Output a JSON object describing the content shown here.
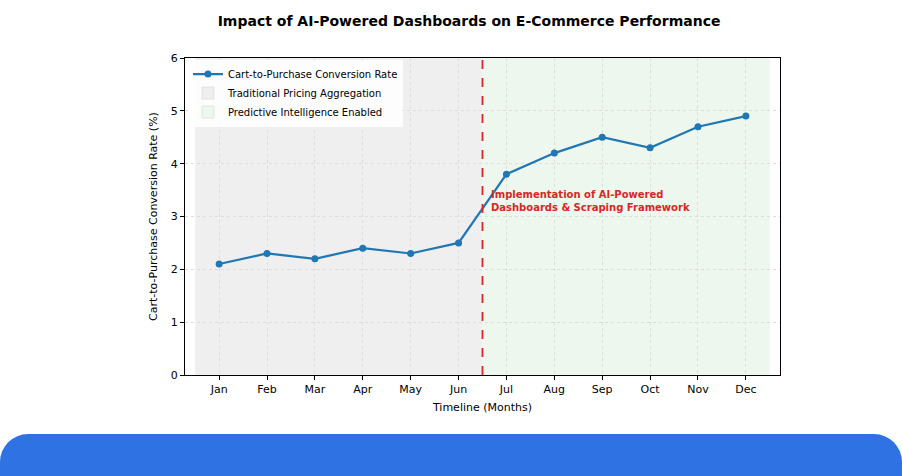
{
  "chart_data": {
    "type": "line",
    "title": "Impact of AI-Powered Dashboards on E-Commerce Performance",
    "x_label": "Timeline (Months)",
    "y_label": "Cart-to-Purchase Conversion Rate (%)",
    "categories": [
      "Jan",
      "Feb",
      "Mar",
      "Apr",
      "May",
      "Jun",
      "Jul",
      "Aug",
      "Sep",
      "Oct",
      "Nov",
      "Dec"
    ],
    "series": [
      {
        "name": "Cart-to-Purchase Conversion Rate",
        "color": "#1f77b4",
        "marker": "circle",
        "line_style": "solid",
        "values": [
          2.1,
          2.3,
          2.2,
          2.4,
          2.3,
          2.5,
          3.8,
          4.2,
          4.5,
          4.3,
          4.7,
          4.9
        ]
      }
    ],
    "regions": [
      {
        "name": "Traditional Pricing Aggregation",
        "color": "#efefef",
        "from": "Jan",
        "to": "Jun"
      },
      {
        "name": "Predictive Intelligence Enabled",
        "color": "#eef7ee",
        "from": "Jul",
        "to": "Dec"
      }
    ],
    "annotations": [
      {
        "lines": [
          "Implementation of AI-Powered",
          "Dashboards & Scraping Framework"
        ],
        "color": "#d62728",
        "between": [
          "Jun",
          "Jul"
        ],
        "line_style": "dashed"
      }
    ],
    "ylim": [
      0,
      6
    ],
    "yticks": [
      0,
      1,
      2,
      3,
      4,
      5,
      6
    ],
    "grid": true,
    "legend": "upper left"
  }
}
